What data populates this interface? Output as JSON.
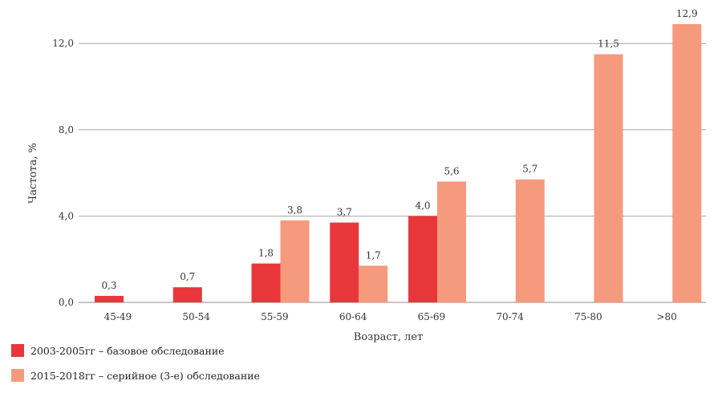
{
  "chart_data": {
    "type": "bar",
    "categories": [
      "45-49",
      "50-54",
      "55-59",
      "60-64",
      "65-69",
      "70-74",
      "75-80",
      ">80"
    ],
    "series": [
      {
        "name": "2003-2005гг – базовое обследование",
        "color": "#e8373a",
        "values": [
          0.3,
          0.7,
          1.8,
          3.7,
          4.0,
          null,
          null,
          null
        ],
        "labels": [
          "0,3",
          "0,7",
          "1,8",
          "3,7",
          "4,0",
          "",
          "",
          ""
        ]
      },
      {
        "name": "2015-2018гг – серийное (3-е) обследование",
        "color": "#f59a7d",
        "values": [
          null,
          null,
          3.8,
          1.7,
          5.6,
          5.7,
          11.5,
          12.9
        ],
        "labels": [
          "",
          "",
          "3,8",
          "1,7",
          "5,6",
          "5,7",
          "11,5",
          "12,9"
        ]
      }
    ],
    "yticks": [
      0,
      4,
      8,
      12
    ],
    "ytick_labels": [
      "0,0",
      "4,0",
      "8,0",
      "12,0"
    ],
    "ylim": [
      0,
      13.2
    ],
    "xlabel": "Возраст, лет",
    "ylabel": "Частота, %",
    "grid": true,
    "legend_position": "bottom-left"
  }
}
